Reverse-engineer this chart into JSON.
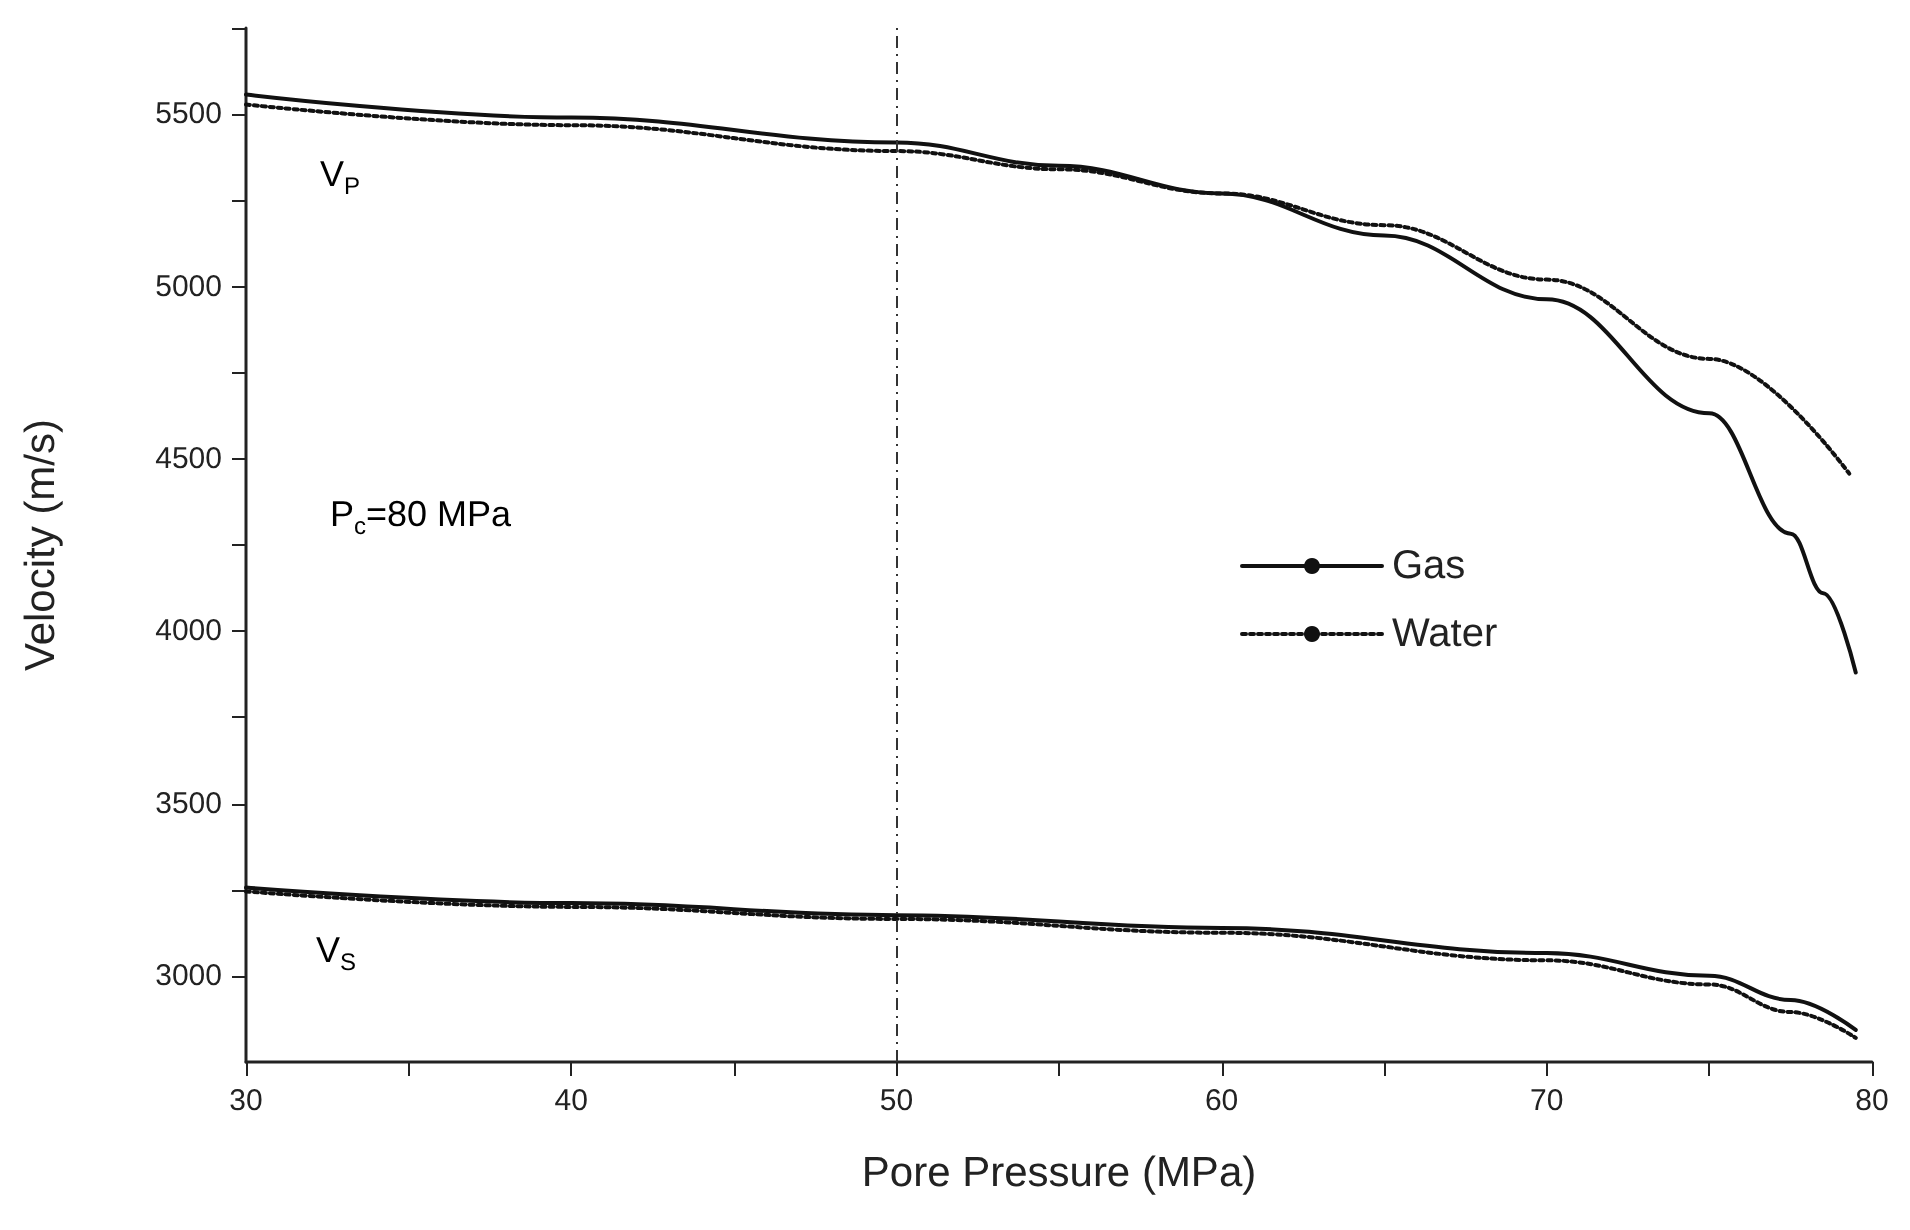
{
  "chart_data": {
    "type": "line",
    "xlabel": "Pore Pressure (MPa)",
    "ylabel": "Velocity (m/s)",
    "xlim": [
      30,
      80
    ],
    "xticks": [
      30,
      {
        "value": 35,
        "label": null
      },
      40,
      {
        "value": 45,
        "label": null
      },
      50,
      {
        "value": 55,
        "label": null
      },
      60,
      {
        "value": 65,
        "label": null
      },
      70,
      {
        "value": 75,
        "label": null
      },
      80
    ],
    "ylim": [
      2750,
      5750
    ],
    "yticks": [
      3000,
      {
        "value": 3250,
        "label": null
      },
      3500,
      {
        "value": 3750,
        "label": null
      },
      4000,
      {
        "value": 4250,
        "label": null
      },
      4500,
      {
        "value": 4750,
        "label": null
      },
      5000,
      {
        "value": 5250,
        "label": null
      },
      5500,
      {
        "value": 5750,
        "label": null
      }
    ],
    "series": [
      {
        "name": "Gas",
        "color": "#111111",
        "line_style": "solid",
        "x": [
          30,
          40,
          50,
          55,
          60,
          65,
          70,
          75,
          77.5,
          78.5,
          79.5
        ],
        "values": [
          5557,
          5490,
          5418,
          5350,
          5270,
          5148,
          4963,
          4632,
          4283,
          4110,
          3880
        ]
      },
      {
        "name": "Water",
        "color": "#111111",
        "line_style": "dotted",
        "x": [
          30,
          40,
          50,
          55,
          60,
          65,
          70,
          75,
          79.3
        ],
        "values": [
          5528,
          5468,
          5393,
          5340,
          5270,
          5178,
          5020,
          4790,
          4457
        ]
      },
      {
        "color": "#111111",
        "line_style": "solid",
        "x": [
          30,
          40,
          50,
          60,
          70,
          75,
          77.5,
          79.5
        ],
        "values": [
          3256,
          3211,
          3176,
          3139,
          3066,
          3000,
          2930,
          2843
        ]
      },
      {
        "color": "#111111",
        "line_style": "dotted",
        "x": [
          30,
          40,
          50,
          60,
          70,
          75,
          77.5,
          79.5
        ],
        "values": [
          3245,
          3200,
          3165,
          3125,
          3045,
          2975,
          2895,
          2820
        ]
      }
    ],
    "ref_lines": [
      {
        "axis": "x",
        "value": 50,
        "color": "#333333",
        "line_style": "dashed"
      }
    ],
    "annotations": [
      "V$_{P}$",
      "P$_{c}$=80 MPa",
      "V$_{S}$"
    ],
    "legend": "right",
    "grid": false,
    "marker": "none"
  }
}
